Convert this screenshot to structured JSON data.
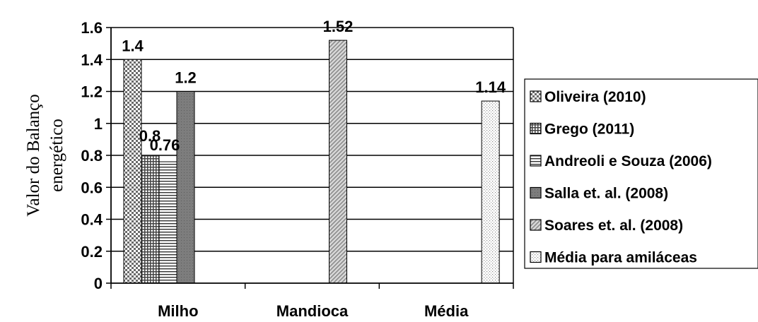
{
  "chart_data": {
    "type": "bar",
    "ylabel_lines": [
      "Valor do Balanço",
      "energético"
    ],
    "categories": [
      "Milho",
      "Mandioca",
      "Média"
    ],
    "ylim": [
      0,
      1.6
    ],
    "yticks": [
      "0",
      "0.2",
      "0.4",
      "0.6",
      "0.8",
      "1",
      "1.2",
      "1.4",
      "1.6"
    ],
    "grid": true,
    "legend_position": "right",
    "series": [
      {
        "name": "Oliveira (2010)",
        "pattern": "checker",
        "values": [
          1.4,
          null,
          null
        ],
        "labels": [
          "1.4",
          "",
          ""
        ]
      },
      {
        "name": "Grego (2011)",
        "pattern": "grid",
        "values": [
          0.8,
          null,
          null
        ],
        "labels": [
          "0.8",
          "",
          ""
        ]
      },
      {
        "name": "Andreoli e Souza (2006)",
        "pattern": "hlines",
        "values": [
          0.76,
          null,
          null
        ],
        "labels": [
          "0.76",
          "",
          ""
        ]
      },
      {
        "name": "Salla et. al. (2008)",
        "pattern": "darkgray",
        "values": [
          1.2,
          null,
          null
        ],
        "labels": [
          "1.2",
          "",
          ""
        ]
      },
      {
        "name": "Soares et. al. (2008)",
        "pattern": "diag",
        "values": [
          null,
          1.52,
          null
        ],
        "labels": [
          "",
          "1.52",
          ""
        ]
      },
      {
        "name": "Média para amiláceas",
        "pattern": "dots",
        "values": [
          null,
          null,
          1.14
        ],
        "labels": [
          "",
          "",
          "1.14"
        ]
      }
    ]
  }
}
